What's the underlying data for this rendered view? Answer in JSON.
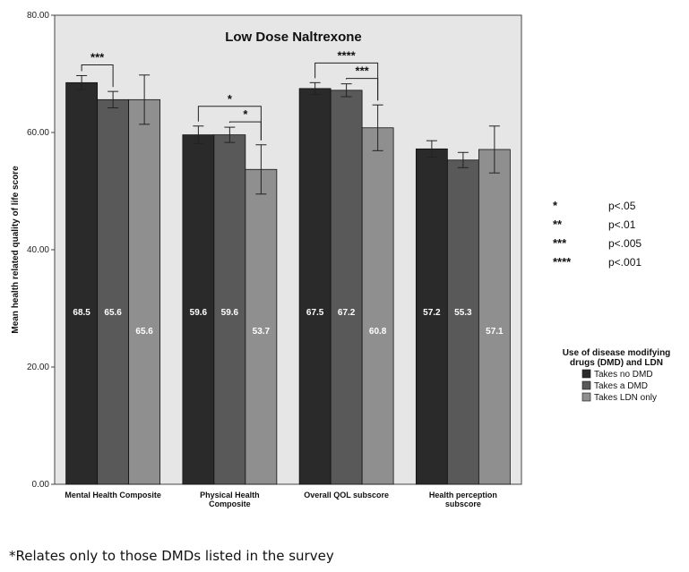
{
  "chart_data": {
    "type": "bar",
    "title": "Low Dose Naltrexone",
    "ylabel": "Mean health related quality of life score",
    "xlabel": "",
    "ylim": [
      0,
      80
    ],
    "yticks": [
      "0.00",
      "20.00",
      "40.00",
      "60.00",
      "80.00"
    ],
    "categories": [
      [
        "Mental Health Composite"
      ],
      [
        "Physical Health",
        "Composite"
      ],
      [
        "Overall QOL subscore"
      ],
      [
        "Health perception",
        "subscore"
      ]
    ],
    "series": [
      {
        "name": "Takes no DMD",
        "color": "#2a2a2a",
        "values": [
          68.5,
          59.6,
          67.5,
          57.2
        ],
        "labels": [
          "68.5",
          "59.6",
          "67.5",
          "57.2"
        ],
        "errors": [
          1.2,
          1.5,
          1.0,
          1.4
        ]
      },
      {
        "name": "Takes a  DMD",
        "color": "#595959",
        "values": [
          65.6,
          59.6,
          67.2,
          55.3
        ],
        "labels": [
          "65.6",
          "59.6",
          "67.2",
          "55.3"
        ],
        "errors": [
          1.4,
          1.3,
          1.1,
          1.3
        ]
      },
      {
        "name": "Takes LDN only",
        "color": "#8f8f8f",
        "values": [
          65.6,
          53.7,
          60.8,
          57.1
        ],
        "labels": [
          "65.6",
          "53.7",
          "60.8",
          "57.1"
        ],
        "errors": [
          4.2,
          4.2,
          3.9,
          4.0
        ]
      }
    ],
    "significance": [
      {
        "category": 0,
        "from": 0,
        "to": 1,
        "stars": "***",
        "level": 0
      },
      {
        "category": 1,
        "from": 0,
        "to": 2,
        "stars": "*",
        "level": 0
      },
      {
        "category": 1,
        "from": 1,
        "to": 2,
        "stars": "*",
        "level": 1
      },
      {
        "category": 2,
        "from": 0,
        "to": 2,
        "stars": "****",
        "level": 0
      },
      {
        "category": 2,
        "from": 1,
        "to": 2,
        "stars": "***",
        "level": 1
      }
    ],
    "legend_title": [
      "Use of disease modifying",
      "drugs (DMD) and LDN"
    ],
    "legend_placement": "right",
    "grid": false
  },
  "key": [
    {
      "stars": "*",
      "p": "p<.05"
    },
    {
      "stars": "**",
      "p": "p<.01"
    },
    {
      "stars": "***",
      "p": "p<.005"
    },
    {
      "stars": "****",
      "p": "p<.001"
    }
  ],
  "footnote": "*Relates only to those DMDs listed in the survey"
}
